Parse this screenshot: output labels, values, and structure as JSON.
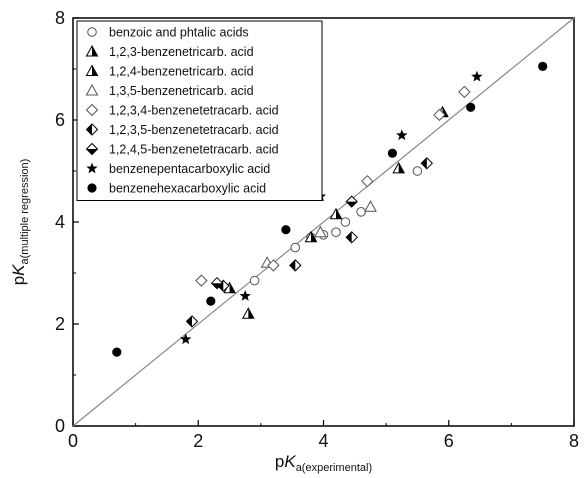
{
  "chart_data": {
    "type": "scatter",
    "xlabel": {
      "prefix": "p",
      "italic": "K",
      "sub": "a(experimental)"
    },
    "ylabel": {
      "prefix": "p",
      "italic": "K",
      "sub": "a(multiple regression)"
    },
    "xlim": [
      0,
      8
    ],
    "ylim": [
      0,
      8
    ],
    "xticks": [
      "0",
      "2",
      "4",
      "6",
      "8"
    ],
    "yticks": [
      "0",
      "2",
      "4",
      "6",
      "8"
    ],
    "reference_line": {
      "from": [
        0,
        0
      ],
      "to": [
        8,
        8
      ],
      "color": "#888888"
    },
    "legend_position": "top-left",
    "series": [
      {
        "name": "benzoic and phtalic acids",
        "marker": "circle-open",
        "points": [
          [
            2.9,
            2.85
          ],
          [
            3.55,
            3.5
          ],
          [
            3.8,
            3.7
          ],
          [
            4.0,
            3.75
          ],
          [
            4.2,
            3.8
          ],
          [
            4.35,
            4.0
          ],
          [
            4.6,
            4.2
          ],
          [
            5.5,
            5.0
          ]
        ]
      },
      {
        "name": "1,2,3-benzenetricarb. acid",
        "marker": "triangle-half",
        "points": [
          [
            2.8,
            2.2
          ],
          [
            3.8,
            3.7
          ],
          [
            5.2,
            5.05
          ]
        ]
      },
      {
        "name": "1,2,4-benzenetricarb. acid",
        "marker": "triangle-half",
        "points": [
          [
            2.5,
            2.7
          ],
          [
            4.2,
            4.15
          ],
          [
            5.9,
            6.15
          ]
        ]
      },
      {
        "name": "1,3,5-benzenetricarb. acid",
        "marker": "triangle-open",
        "points": [
          [
            3.1,
            3.2
          ],
          [
            3.95,
            3.8
          ],
          [
            4.75,
            4.3
          ]
        ]
      },
      {
        "name": "1,2,3,4-benzenetetracarb. acid",
        "marker": "diamond-open",
        "points": [
          [
            2.05,
            2.85
          ],
          [
            3.2,
            3.15
          ],
          [
            4.7,
            4.8
          ],
          [
            5.85,
            6.1
          ],
          [
            6.25,
            6.55
          ]
        ]
      },
      {
        "name": "1,2,3,5-benzenetetracarb. acid",
        "marker": "diamond-half-left",
        "points": [
          [
            1.9,
            2.05
          ],
          [
            2.4,
            2.75
          ],
          [
            3.55,
            3.15
          ],
          [
            4.45,
            3.7
          ],
          [
            5.65,
            5.15
          ]
        ]
      },
      {
        "name": "1,2,4,5-benzenetetracarb. acid",
        "marker": "diamond-half-bottom",
        "points": [
          [
            2.3,
            2.8
          ],
          [
            4.45,
            4.4
          ]
        ]
      },
      {
        "name": "benzenepentacarboxylic acid",
        "marker": "star",
        "points": [
          [
            1.8,
            1.7
          ],
          [
            2.75,
            2.55
          ],
          [
            3.95,
            4.5
          ],
          [
            5.25,
            5.7
          ],
          [
            6.45,
            6.85
          ]
        ]
      },
      {
        "name": "benzenehexacarboxylic acid",
        "marker": "circle-filled",
        "points": [
          [
            0.7,
            1.45
          ],
          [
            2.2,
            2.45
          ],
          [
            3.4,
            3.85
          ],
          [
            5.1,
            5.35
          ],
          [
            6.35,
            6.25
          ],
          [
            7.5,
            7.05
          ]
        ]
      }
    ]
  }
}
